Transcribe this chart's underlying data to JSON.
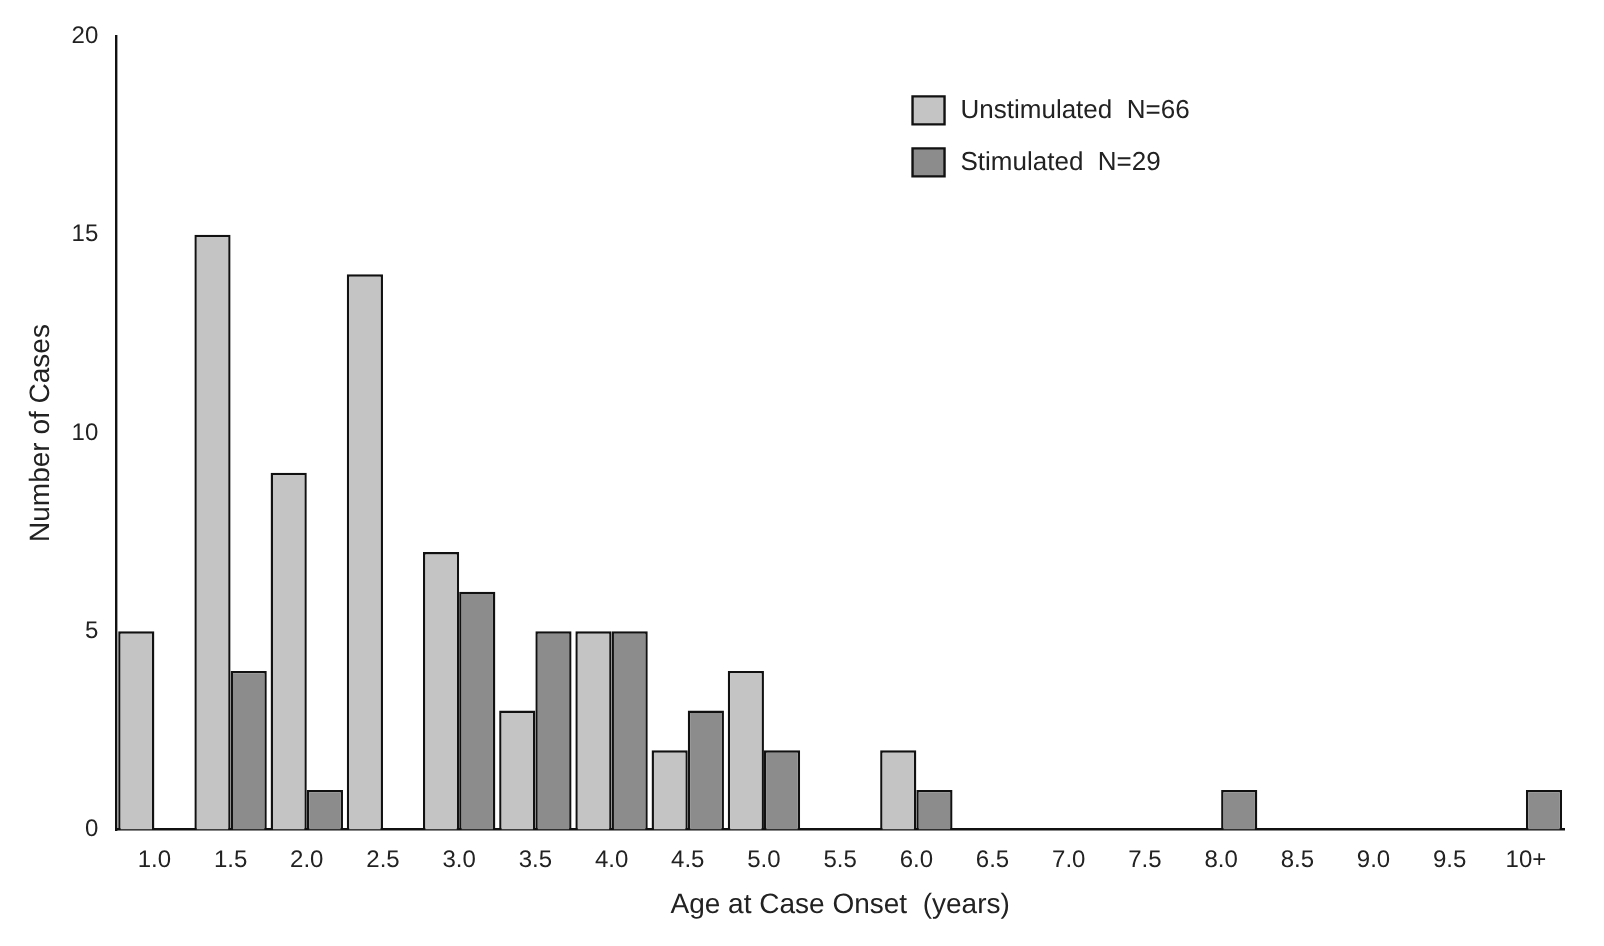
{
  "chart_data": {
    "type": "bar",
    "xlabel": "Age at Case Onset  (years)",
    "ylabel": "Number of Cases",
    "categories": [
      "1.0",
      "1.5",
      "2.0",
      "2.5",
      "3.0",
      "3.5",
      "4.0",
      "4.5",
      "5.0",
      "5.5",
      "6.0",
      "6.5",
      "7.0",
      "7.5",
      "8.0",
      "8.5",
      "9.0",
      "9.5",
      "10+"
    ],
    "series": [
      {
        "name": "Unstimulated  N=66",
        "color": "#c4c4c4",
        "values": [
          5,
          15,
          9,
          14,
          7,
          3,
          5,
          2,
          4,
          0,
          2,
          0,
          0,
          0,
          0,
          0,
          0,
          0,
          0
        ]
      },
      {
        "name": "Stimulated  N=29",
        "color": "#8c8c8c",
        "values": [
          0,
          4,
          1,
          0,
          6,
          5,
          5,
          3,
          2,
          0,
          1,
          0,
          0,
          0,
          1,
          0,
          0,
          0,
          1
        ]
      }
    ],
    "ylim": [
      0,
      20
    ],
    "yticks": [
      0,
      5,
      10,
      15,
      20
    ],
    "grid": false,
    "legend": "top right"
  }
}
